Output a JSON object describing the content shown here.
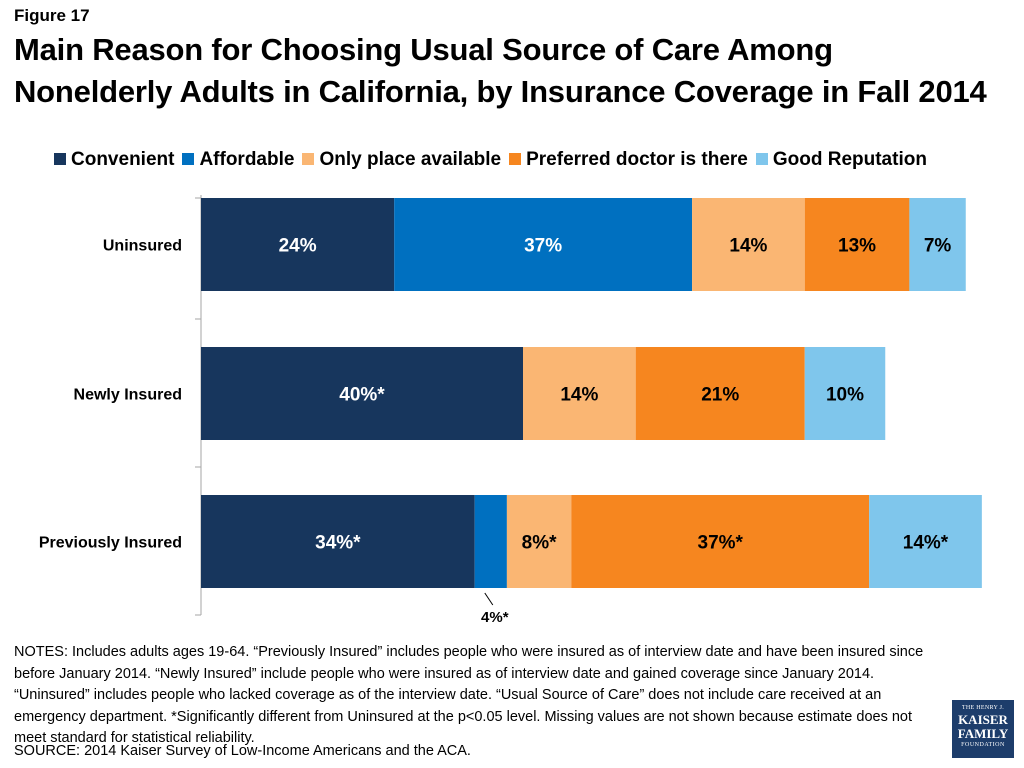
{
  "figure_label": "Figure 17",
  "title_lines": [
    "Main Reason for Choosing Usual Source of Care Among",
    "Nonelderly Adults in California, by Insurance Coverage in Fall 2014"
  ],
  "chart_data": {
    "type": "bar",
    "orientation": "horizontal",
    "stacked": true,
    "categories": [
      "Uninsured",
      "Newly Insured",
      "Previously Insured"
    ],
    "series": [
      {
        "name": "Convenient",
        "color": "#17365d",
        "values": [
          24,
          40,
          34
        ],
        "labels": [
          "24%",
          "40%*",
          "34%*"
        ]
      },
      {
        "name": "Affordable",
        "color": "#0070c0",
        "values": [
          37,
          null,
          4
        ],
        "labels": [
          "37%",
          "",
          "4%*"
        ]
      },
      {
        "name": "Only place available",
        "color": "#fab673",
        "values": [
          14,
          14,
          8
        ],
        "labels": [
          "14%",
          "14%",
          "8%*"
        ]
      },
      {
        "name": "Preferred doctor is there",
        "color": "#f6861f",
        "values": [
          13,
          21,
          37
        ],
        "labels": [
          "13%",
          "21%",
          "37%*"
        ]
      },
      {
        "name": "Good Reputation",
        "color": "#7fc6ec",
        "values": [
          7,
          10,
          14
        ],
        "labels": [
          "7%",
          "10%",
          "14%*"
        ]
      }
    ],
    "legend_position": "top",
    "grid": false
  },
  "notes": "NOTES: Includes adults ages 19-64. “Previously Insured” includes people who were insured as of interview date and have been insured since before January 2014. “Newly Insured” include people who were insured as of interview date and gained coverage since January 2014. “Uninsured” includes people who lacked coverage as of the interview date. “Usual Source of Care” does not include care received at an emergency department. *Significantly different from Uninsured at the p<0.05 level. Missing values are not shown because estimate does not meet standard for statistical reliability.",
  "source": "SOURCE: 2014 Kaiser Survey of Low-Income Americans and the ACA.",
  "logo": {
    "line1": "THE HENRY J.",
    "line2": "KAISER",
    "line3": "FAMILY",
    "line4": "FOUNDATION"
  }
}
